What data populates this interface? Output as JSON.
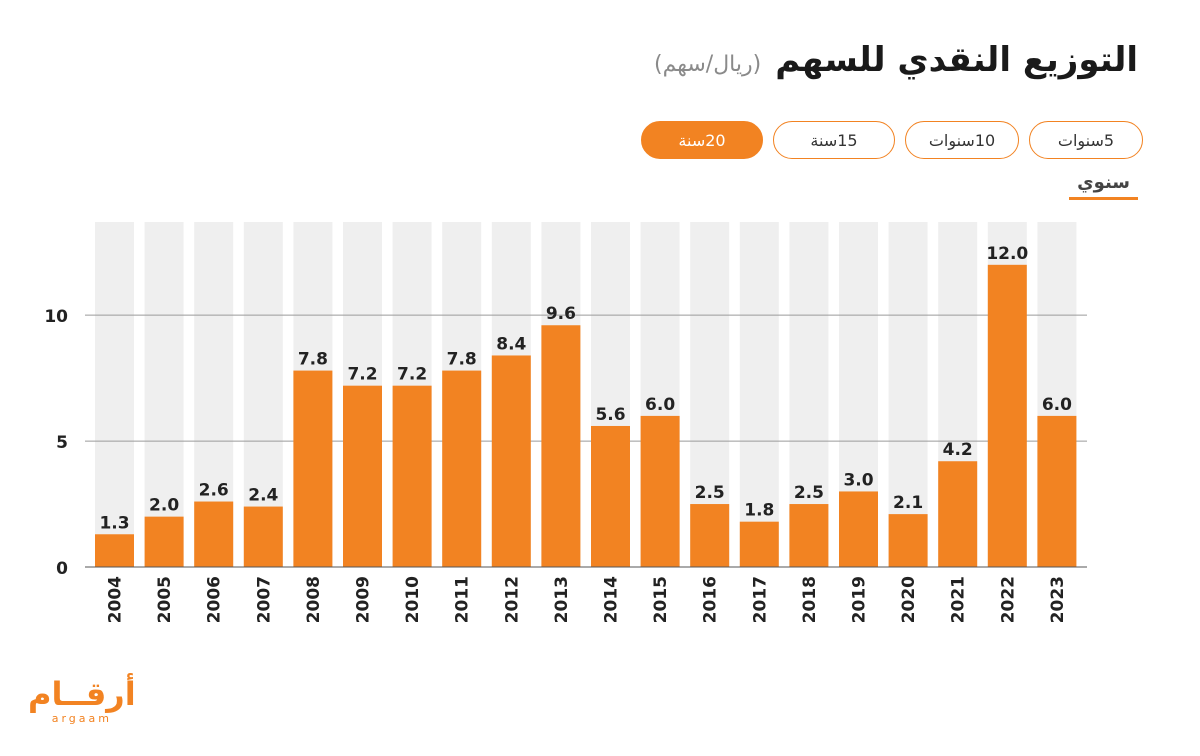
{
  "header": {
    "title": "التوزيع النقدي للسهم",
    "subtitle": "(ريال/سهم)"
  },
  "tabs": [
    {
      "label": "5سنوات",
      "active": false
    },
    {
      "label": "10سنوات",
      "active": false
    },
    {
      "label": "15سنة",
      "active": false
    },
    {
      "label": "20سنة",
      "active": true
    }
  ],
  "frequency": {
    "label": "سنوي"
  },
  "logo": {
    "ar": "أرقــام",
    "en": "argaam"
  },
  "colors": {
    "accent": "#f28322",
    "column_bg": "#efefef",
    "grid": "#9a9a9a"
  },
  "chart_data": {
    "type": "bar",
    "categories": [
      "2004",
      "2005",
      "2006",
      "2007",
      "2008",
      "2009",
      "2010",
      "2011",
      "2012",
      "2013",
      "2014",
      "2015",
      "2016",
      "2017",
      "2018",
      "2019",
      "2020",
      "2021",
      "2022",
      "2023"
    ],
    "values": [
      1.3,
      2.0,
      2.6,
      2.4,
      7.8,
      7.2,
      7.2,
      7.8,
      8.4,
      9.6,
      5.6,
      6.0,
      2.5,
      1.8,
      2.5,
      3.0,
      2.1,
      4.2,
      12.0,
      6.0
    ],
    "value_labels": [
      "1.3",
      "2.0",
      "2.6",
      "2.4",
      "7.8",
      "7.2",
      "7.2",
      "7.8",
      "8.4",
      "9.6",
      "5.6",
      "6.0",
      "2.5",
      "1.8",
      "2.5",
      "3.0",
      "2.1",
      "4.2",
      "12.0",
      "6.0"
    ],
    "yticks": [
      0,
      5,
      10
    ],
    "ylim": [
      0,
      13.7
    ],
    "grid": true
  }
}
